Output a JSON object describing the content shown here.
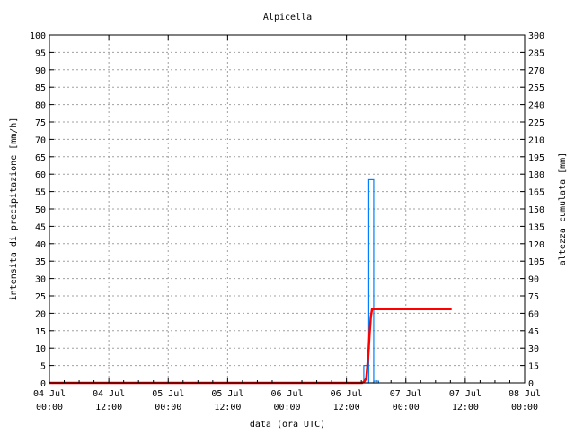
{
  "chart_data": {
    "type": "bar+line",
    "title": "Alpicella",
    "xlabel": "data (ora UTC)",
    "ylabel_left": "intensita di precipitazione [mm/h]",
    "ylabel_right": "altezza cumulata [mm]",
    "xlim": [
      "04 Jul 00:00",
      "08 Jul 00:00"
    ],
    "ylim_left": [
      0,
      100
    ],
    "ylim_right": [
      0,
      300
    ],
    "grid": true,
    "x_ticks": [
      {
        "day": "04 Jul",
        "time": "00:00"
      },
      {
        "day": "04 Jul",
        "time": "12:00"
      },
      {
        "day": "05 Jul",
        "time": "00:00"
      },
      {
        "day": "05 Jul",
        "time": "12:00"
      },
      {
        "day": "06 Jul",
        "time": "00:00"
      },
      {
        "day": "06 Jul",
        "time": "12:00"
      },
      {
        "day": "07 Jul",
        "time": "00:00"
      },
      {
        "day": "07 Jul",
        "time": "12:00"
      },
      {
        "day": "08 Jul",
        "time": "00:00"
      }
    ],
    "left_ticks": [
      0,
      5,
      10,
      15,
      20,
      25,
      30,
      35,
      40,
      45,
      50,
      55,
      60,
      65,
      70,
      75,
      80,
      85,
      90,
      95,
      100
    ],
    "right_ticks": [
      0,
      15,
      30,
      45,
      60,
      75,
      90,
      105,
      120,
      135,
      150,
      165,
      180,
      195,
      210,
      225,
      240,
      255,
      270,
      285,
      300
    ],
    "series": [
      {
        "kind": "bar",
        "axis": "left",
        "color": "#0080ff",
        "bars": [
          {
            "start": "06 Jul 15:30",
            "end": "06 Jul 16:30",
            "value": 5
          },
          {
            "start": "06 Jul 16:30",
            "end": "06 Jul 17:30",
            "value": 58.4
          },
          {
            "start": "06 Jul 17:30",
            "end": "06 Jul 18:30",
            "value": 0.5
          }
        ]
      },
      {
        "kind": "line",
        "axis": "right",
        "color": "#ff0000",
        "points": [
          [
            "04 Jul 00:00",
            0
          ],
          [
            "06 Jul 15:10",
            0
          ],
          [
            "06 Jul 15:40",
            1.5
          ],
          [
            "06 Jul 16:00",
            4
          ],
          [
            "06 Jul 16:10",
            12
          ],
          [
            "06 Jul 16:25",
            25
          ],
          [
            "06 Jul 16:40",
            42
          ],
          [
            "06 Jul 16:55",
            57
          ],
          [
            "06 Jul 17:10",
            63.6
          ],
          [
            "07 Jul 09:15",
            63.6
          ]
        ]
      }
    ]
  }
}
